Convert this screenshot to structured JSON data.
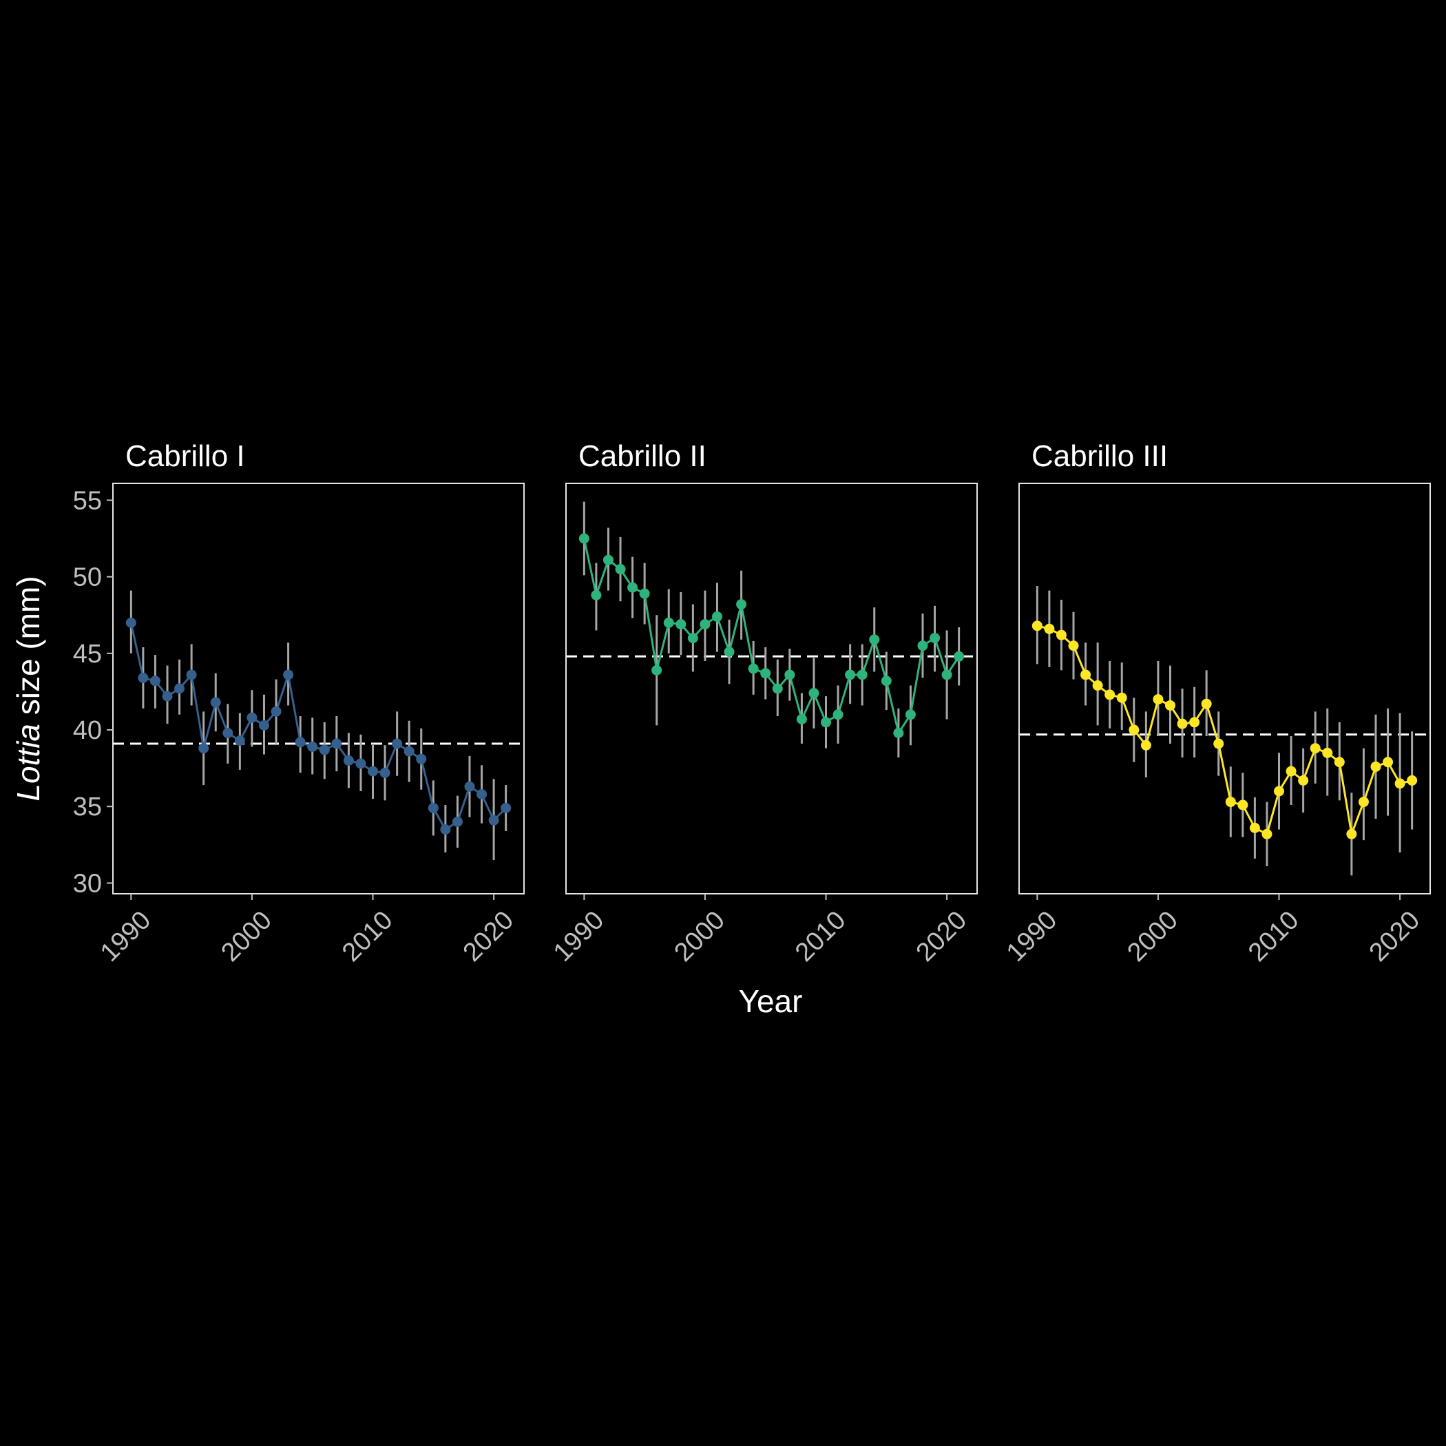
{
  "chart_data": {
    "type": "line",
    "xlabel": "Year",
    "ylabel_italic": "Lottia",
    "ylabel_rest": " size (mm)",
    "xlim": [
      1988.5,
      2022.5
    ],
    "ylim": [
      29.3,
      56.1
    ],
    "xticks": [
      1990,
      2000,
      2010,
      2020
    ],
    "yticks": [
      30,
      35,
      40,
      45,
      50,
      55
    ],
    "panels": [
      {
        "title": "Cabrillo I",
        "color": "#35608D",
        "mean": 39.1,
        "x": [
          1990,
          1991,
          1992,
          1993,
          1994,
          1995,
          1996,
          1997,
          1998,
          1999,
          2000,
          2001,
          2002,
          2003,
          2004,
          2005,
          2006,
          2007,
          2008,
          2009,
          2010,
          2011,
          2012,
          2013,
          2014,
          2015,
          2016,
          2017,
          2018,
          2019,
          2020,
          2021
        ],
        "y": [
          47.0,
          43.4,
          43.2,
          42.2,
          42.7,
          43.6,
          38.8,
          41.8,
          39.8,
          39.3,
          40.8,
          40.3,
          41.2,
          43.6,
          39.2,
          38.9,
          38.7,
          39.1,
          38.0,
          37.8,
          37.3,
          37.2,
          39.1,
          38.6,
          38.1,
          34.9,
          33.5,
          34.0,
          36.3,
          35.8,
          34.1,
          34.9
        ],
        "lower": [
          45.0,
          41.4,
          41.4,
          40.4,
          41.0,
          41.6,
          36.4,
          39.9,
          37.8,
          37.4,
          38.9,
          38.4,
          39.1,
          41.6,
          37.2,
          37.1,
          36.8,
          37.3,
          36.2,
          36.0,
          35.5,
          35.4,
          37.0,
          36.6,
          36.1,
          33.1,
          32.0,
          32.3,
          34.3,
          33.9,
          31.5,
          33.4
        ],
        "upper": [
          49.1,
          45.4,
          44.9,
          44.2,
          44.6,
          45.6,
          41.2,
          43.7,
          41.7,
          41.1,
          42.6,
          42.3,
          43.3,
          45.7,
          40.9,
          40.8,
          40.5,
          40.9,
          39.8,
          39.7,
          39.1,
          39.0,
          41.2,
          40.6,
          40.1,
          36.7,
          35.1,
          35.7,
          38.3,
          37.7,
          36.8,
          36.4
        ]
      },
      {
        "title": "Cabrillo II",
        "color": "#2EB37C",
        "mean": 44.8,
        "x": [
          1990,
          1991,
          1992,
          1993,
          1994,
          1995,
          1996,
          1997,
          1998,
          1999,
          2000,
          2001,
          2002,
          2003,
          2004,
          2005,
          2006,
          2007,
          2008,
          2009,
          2010,
          2011,
          2012,
          2013,
          2014,
          2015,
          2016,
          2017,
          2018,
          2019,
          2020,
          2021
        ],
        "y": [
          52.5,
          48.8,
          51.1,
          50.5,
          49.3,
          48.9,
          43.9,
          47.0,
          46.9,
          46.0,
          46.9,
          47.4,
          45.1,
          48.2,
          44.0,
          43.7,
          42.7,
          43.6,
          40.7,
          42.4,
          40.5,
          41.0,
          43.6,
          43.6,
          45.9,
          43.2,
          39.8,
          41.0,
          45.5,
          46.0,
          43.6,
          44.8
        ],
        "lower": [
          50.1,
          46.5,
          49.1,
          48.4,
          47.3,
          46.9,
          40.3,
          45.0,
          44.9,
          43.8,
          44.5,
          45.1,
          43.0,
          45.9,
          42.3,
          42.0,
          40.9,
          41.9,
          39.1,
          40.1,
          38.8,
          39.1,
          41.7,
          41.6,
          43.8,
          41.3,
          38.2,
          39.0,
          43.4,
          43.8,
          40.7,
          42.9
        ],
        "upper": [
          54.9,
          50.9,
          53.2,
          52.6,
          51.3,
          50.9,
          47.5,
          49.2,
          49.0,
          48.2,
          49.1,
          49.6,
          47.2,
          50.4,
          45.8,
          45.4,
          44.6,
          45.3,
          42.4,
          44.7,
          42.2,
          42.9,
          45.6,
          45.6,
          48.0,
          45.1,
          41.4,
          42.9,
          47.6,
          48.1,
          46.5,
          46.7
        ]
      },
      {
        "title": "Cabrillo III",
        "color": "#FDE725",
        "mean": 39.7,
        "x": [
          1990,
          1991,
          1992,
          1993,
          1994,
          1995,
          1996,
          1997,
          1998,
          1999,
          2000,
          2001,
          2002,
          2003,
          2004,
          2005,
          2006,
          2007,
          2008,
          2009,
          2010,
          2011,
          2012,
          2013,
          2014,
          2015,
          2016,
          2017,
          2018,
          2019,
          2020,
          2021
        ],
        "y": [
          46.8,
          46.6,
          46.2,
          45.5,
          43.6,
          42.9,
          42.3,
          42.1,
          40.0,
          39.0,
          42.0,
          41.6,
          40.4,
          40.5,
          41.7,
          39.1,
          35.3,
          35.1,
          33.6,
          33.2,
          36.0,
          37.3,
          36.7,
          38.8,
          38.5,
          37.9,
          33.2,
          35.3,
          37.6,
          37.9,
          36.5,
          36.7
        ],
        "lower": [
          44.3,
          44.1,
          43.9,
          43.3,
          41.6,
          40.3,
          40.1,
          40.0,
          37.9,
          36.9,
          39.6,
          39.1,
          38.2,
          38.2,
          39.6,
          37.0,
          33.0,
          33.0,
          31.6,
          31.1,
          33.5,
          35.1,
          34.6,
          36.5,
          35.7,
          35.4,
          30.5,
          32.8,
          34.2,
          34.4,
          32.0,
          33.5
        ],
        "upper": [
          49.4,
          49.1,
          48.5,
          47.7,
          45.7,
          45.7,
          44.5,
          44.4,
          42.1,
          41.2,
          44.5,
          44.2,
          42.7,
          42.8,
          43.9,
          41.2,
          37.6,
          37.2,
          35.6,
          35.3,
          38.5,
          39.6,
          38.8,
          41.2,
          41.4,
          40.5,
          35.9,
          38.8,
          41.0,
          41.4,
          41.1,
          39.9
        ]
      }
    ]
  }
}
